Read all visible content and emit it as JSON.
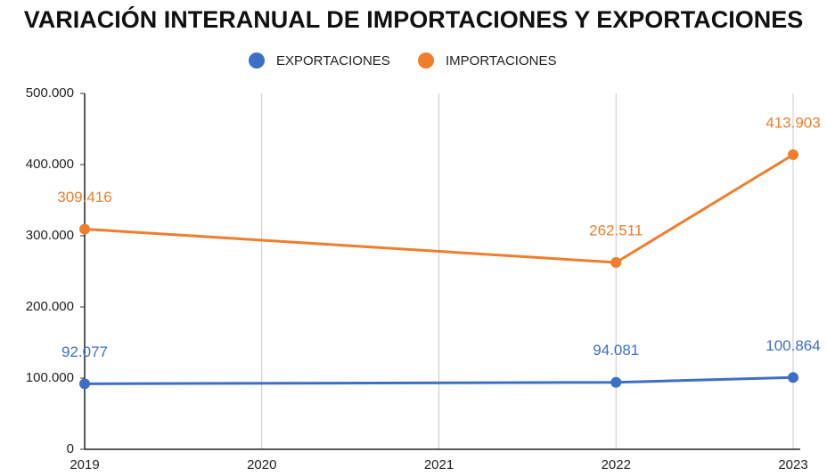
{
  "chart_data": {
    "type": "line",
    "title": "VARIACIÓN INTERANUAL DE IMPORTACIONES Y EXPORTACIONES",
    "x": [
      2019,
      2022,
      2023
    ],
    "series": [
      {
        "name": "EXPORTACIONES",
        "color": "#3e6fc7",
        "values": [
          92077,
          94081,
          100864
        ],
        "value_labels": [
          "92.077",
          "94.081",
          "100.864"
        ]
      },
      {
        "name": "IMPORTACIONES",
        "color": "#ef7d2c",
        "values": [
          309416,
          262511,
          413903
        ],
        "value_labels": [
          "309.416",
          "262.511",
          "413.903"
        ]
      }
    ],
    "xlim": [
      2019,
      2023
    ],
    "xticks": [
      2019,
      2020,
      2021,
      2022,
      2023
    ],
    "ylim": [
      0,
      500000
    ],
    "yticks": [
      0,
      {
        "value": 100000,
        "label": "100.000"
      },
      {
        "value": 200000,
        "label": "200.000"
      },
      {
        "value": 300000,
        "label": "300.000"
      },
      {
        "value": 400000,
        "label": "400.000"
      },
      {
        "value": 500000,
        "label": "500.000"
      }
    ],
    "grid": true,
    "legend": "top"
  }
}
